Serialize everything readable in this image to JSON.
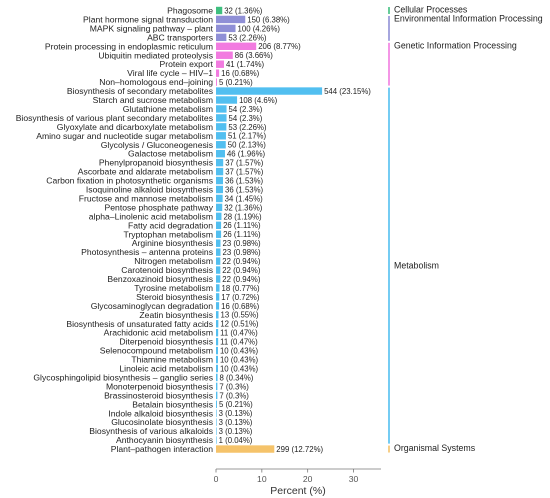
{
  "chart_data": {
    "type": "bar",
    "orientation": "horizontal",
    "xlabel": "Percent (%)",
    "ylabel": "",
    "xlim": [
      0,
      36
    ],
    "xticks": [
      0,
      10,
      20,
      30
    ],
    "grid": false,
    "legend": "right",
    "categories": [
      {
        "name": "Phagosome",
        "count": 32,
        "pct": 1.36,
        "label": "32 (1.36%)",
        "group": 0
      },
      {
        "name": "Plant hormone signal transduction",
        "count": 150,
        "pct": 6.38,
        "label": "150 (6.38%)",
        "group": 1
      },
      {
        "name": "MAPK signaling pathway – plant",
        "count": 100,
        "pct": 4.26,
        "label": "100 (4.26%)",
        "group": 1
      },
      {
        "name": "ABC transporters",
        "count": 53,
        "pct": 2.26,
        "label": "53 (2.26%)",
        "group": 1
      },
      {
        "name": "Protein processing in endoplasmic reticulum",
        "count": 206,
        "pct": 8.77,
        "label": "206 (8.77%)",
        "group": 2
      },
      {
        "name": "Ubiquitin mediated proteolysis",
        "count": 86,
        "pct": 3.66,
        "label": "86 (3.66%)",
        "group": 2
      },
      {
        "name": "Protein export",
        "count": 41,
        "pct": 1.74,
        "label": "41 (1.74%)",
        "group": 2
      },
      {
        "name": "Viral life cycle – HIV–1",
        "count": 16,
        "pct": 0.68,
        "label": "16 (0.68%)",
        "group": 2
      },
      {
        "name": "Non–homologous end–joining",
        "count": 5,
        "pct": 0.21,
        "label": "5 (0.21%)",
        "group": 2
      },
      {
        "name": "Biosynthesis of secondary metabolites",
        "count": 544,
        "pct": 23.15,
        "label": "544 (23.15%)",
        "group": 3
      },
      {
        "name": "Starch and sucrose metabolism",
        "count": 108,
        "pct": 4.6,
        "label": "108 (4.6%)",
        "group": 3
      },
      {
        "name": "Glutathione metabolism",
        "count": 54,
        "pct": 2.3,
        "label": "54 (2.3%)",
        "group": 3
      },
      {
        "name": "Biosynthesis of various plant secondary metabolites",
        "count": 54,
        "pct": 2.3,
        "label": "54 (2.3%)",
        "group": 3
      },
      {
        "name": "Glyoxylate and dicarboxylate metabolism",
        "count": 53,
        "pct": 2.26,
        "label": "53 (2.26%)",
        "group": 3
      },
      {
        "name": "Amino sugar and nucleotide sugar metabolism",
        "count": 51,
        "pct": 2.17,
        "label": "51 (2.17%)",
        "group": 3
      },
      {
        "name": "Glycolysis / Gluconeogenesis",
        "count": 50,
        "pct": 2.13,
        "label": "50 (2.13%)",
        "group": 3
      },
      {
        "name": "Galactose metabolism",
        "count": 46,
        "pct": 1.96,
        "label": "46 (1.96%)",
        "group": 3
      },
      {
        "name": "Phenylpropanoid biosynthesis",
        "count": 37,
        "pct": 1.57,
        "label": "37 (1.57%)",
        "group": 3
      },
      {
        "name": "Ascorbate and aldarate metabolism",
        "count": 37,
        "pct": 1.57,
        "label": "37 (1.57%)",
        "group": 3
      },
      {
        "name": "Carbon fixation in photosynthetic organisms",
        "count": 36,
        "pct": 1.53,
        "label": "36 (1.53%)",
        "group": 3
      },
      {
        "name": "Isoquinoline alkaloid biosynthesis",
        "count": 36,
        "pct": 1.53,
        "label": "36 (1.53%)",
        "group": 3
      },
      {
        "name": "Fructose and mannose metabolism",
        "count": 34,
        "pct": 1.45,
        "label": "34 (1.45%)",
        "group": 3
      },
      {
        "name": "Pentose phosphate pathway",
        "count": 32,
        "pct": 1.36,
        "label": "32 (1.36%)",
        "group": 3
      },
      {
        "name": "alpha–Linolenic acid metabolism",
        "count": 28,
        "pct": 1.19,
        "label": "28 (1.19%)",
        "group": 3
      },
      {
        "name": "Fatty acid degradation",
        "count": 26,
        "pct": 1.11,
        "label": "26 (1.11%)",
        "group": 3
      },
      {
        "name": "Tryptophan metabolism",
        "count": 26,
        "pct": 1.11,
        "label": "26 (1.11%)",
        "group": 3
      },
      {
        "name": "Arginine biosynthesis",
        "count": 23,
        "pct": 0.98,
        "label": "23 (0.98%)",
        "group": 3
      },
      {
        "name": "Photosynthesis – antenna proteins",
        "count": 23,
        "pct": 0.98,
        "label": "23 (0.98%)",
        "group": 3
      },
      {
        "name": "Nitrogen metabolism",
        "count": 22,
        "pct": 0.94,
        "label": "22 (0.94%)",
        "group": 3
      },
      {
        "name": "Carotenoid biosynthesis",
        "count": 22,
        "pct": 0.94,
        "label": "22 (0.94%)",
        "group": 3
      },
      {
        "name": "Benzoxazinoid biosynthesis",
        "count": 22,
        "pct": 0.94,
        "label": "22 (0.94%)",
        "group": 3
      },
      {
        "name": "Tyrosine metabolism",
        "count": 18,
        "pct": 0.77,
        "label": "18 (0.77%)",
        "group": 3
      },
      {
        "name": "Steroid biosynthesis",
        "count": 17,
        "pct": 0.72,
        "label": "17 (0.72%)",
        "group": 3
      },
      {
        "name": "Glycosaminoglycan degradation",
        "count": 16,
        "pct": 0.68,
        "label": "16 (0.68%)",
        "group": 3
      },
      {
        "name": "Zeatin biosynthesis",
        "count": 13,
        "pct": 0.55,
        "label": "13 (0.55%)",
        "group": 3
      },
      {
        "name": "Biosynthesis of unsaturated fatty acids",
        "count": 12,
        "pct": 0.51,
        "label": "12 (0.51%)",
        "group": 3
      },
      {
        "name": "Arachidonic acid metabolism",
        "count": 11,
        "pct": 0.47,
        "label": "11 (0.47%)",
        "group": 3
      },
      {
        "name": "Diterpenoid biosynthesis",
        "count": 11,
        "pct": 0.47,
        "label": "11 (0.47%)",
        "group": 3
      },
      {
        "name": "Selenocompound metabolism",
        "count": 10,
        "pct": 0.43,
        "label": "10 (0.43%)",
        "group": 3
      },
      {
        "name": "Thiamine metabolism",
        "count": 10,
        "pct": 0.43,
        "label": "10 (0.43%)",
        "group": 3
      },
      {
        "name": "Linoleic acid metabolism",
        "count": 10,
        "pct": 0.43,
        "label": "10 (0.43%)",
        "group": 3
      },
      {
        "name": "Glycosphingolipid biosynthesis – ganglio series",
        "count": 8,
        "pct": 0.34,
        "label": "8 (0.34%)",
        "group": 3
      },
      {
        "name": "Monoterpenoid biosynthesis",
        "count": 7,
        "pct": 0.3,
        "label": "7 (0.3%)",
        "group": 3
      },
      {
        "name": "Brassinosteroid biosynthesis",
        "count": 7,
        "pct": 0.3,
        "label": "7 (0.3%)",
        "group": 3
      },
      {
        "name": "Betalain biosynthesis",
        "count": 5,
        "pct": 0.21,
        "label": "5 (0.21%)",
        "group": 3
      },
      {
        "name": "Indole alkaloid biosynthesis",
        "count": 3,
        "pct": 0.13,
        "label": "3 (0.13%)",
        "group": 3
      },
      {
        "name": "Glucosinolate biosynthesis",
        "count": 3,
        "pct": 0.13,
        "label": "3 (0.13%)",
        "group": 3
      },
      {
        "name": "Biosynthesis of various alkaloids",
        "count": 3,
        "pct": 0.13,
        "label": "3 (0.13%)",
        "group": 3
      },
      {
        "name": "Anthocyanin biosynthesis",
        "count": 1,
        "pct": 0.04,
        "label": "1 (0.04%)",
        "group": 3
      },
      {
        "name": "Plant–pathogen interaction",
        "count": 299,
        "pct": 12.72,
        "label": "299 (12.72%)",
        "group": 4
      }
    ],
    "groups": [
      {
        "name": "Cellular Processes",
        "color": "#3fbf7f"
      },
      {
        "name": "Environmental Information Processing",
        "color": "#8f8fd6"
      },
      {
        "name": "Genetic Information Processing",
        "color": "#f27be0"
      },
      {
        "name": "Metabolism",
        "color": "#52bff0"
      },
      {
        "name": "Organismal Systems",
        "color": "#f5c36a"
      }
    ]
  }
}
